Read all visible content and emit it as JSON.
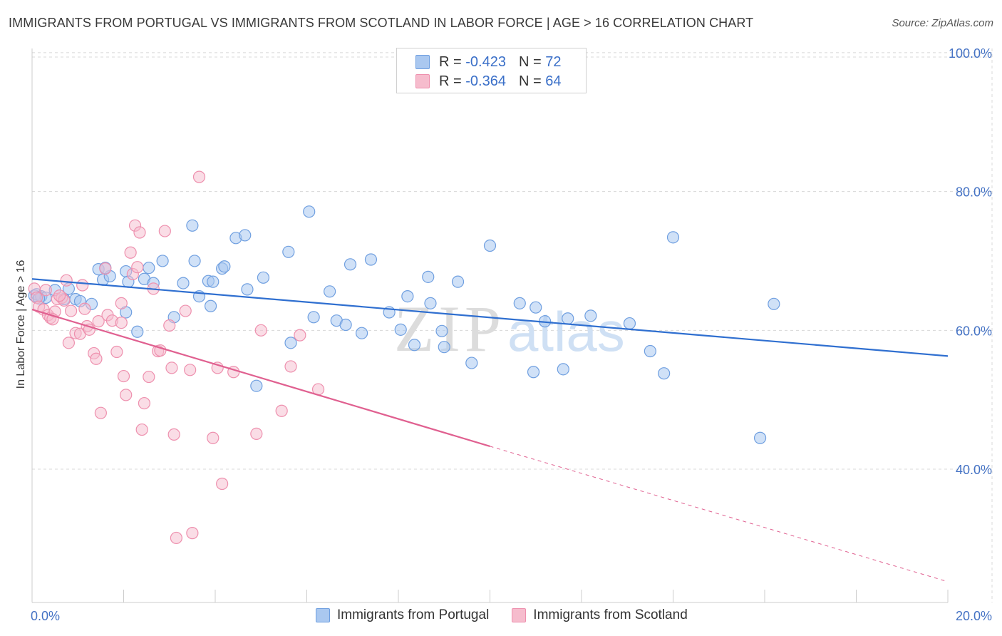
{
  "header": {
    "title": "IMMIGRANTS FROM PORTUGAL VS IMMIGRANTS FROM SCOTLAND IN LABOR FORCE | AGE > 16 CORRELATION CHART",
    "source": "Source: ZipAtlas.com"
  },
  "legend": {
    "rows": [
      {
        "r_label": "R = ",
        "r_value": "-0.423",
        "n_label": "N = ",
        "n_value": "72"
      },
      {
        "r_label": "R = ",
        "r_value": "-0.364",
        "n_label": "N = ",
        "n_value": "64"
      }
    ]
  },
  "watermark": {
    "zip": "ZIP",
    "atlas": "atlas"
  },
  "colors": {
    "portugal_fill": "#aac8f0",
    "portugal_stroke": "#6f9fe0",
    "portugal_line": "#2f6fd0",
    "scotland_fill": "#f6bccd",
    "scotland_stroke": "#ee90ae",
    "scotland_line": "#e06090",
    "tick_text": "#4472c4",
    "grid": "#d8d8d8"
  },
  "chart_data": {
    "type": "scatter",
    "title": "IMMIGRANTS FROM PORTUGAL VS IMMIGRANTS FROM SCOTLAND IN LABOR FORCE | AGE > 16 CORRELATION CHART",
    "xlabel": "",
    "ylabel": "In Labor Force | Age > 16",
    "xlim": [
      0,
      20
    ],
    "ylim": [
      20.8,
      100.6
    ],
    "x_tick_labels": [
      {
        "value": 0,
        "label": "0.0%"
      },
      {
        "value": 20,
        "label": "20.0%"
      }
    ],
    "y_tick_labels": [
      {
        "value": 100,
        "label": "100.0%"
      },
      {
        "value": 80,
        "label": "80.0%"
      },
      {
        "value": 60,
        "label": "60.0%"
      },
      {
        "value": 40,
        "label": "40.0%"
      }
    ],
    "grid": true,
    "legend_position": "top-center",
    "series": [
      {
        "name": "Immigrants from Portugal",
        "points": [
          [
            0.05,
            65.0
          ],
          [
            0.1,
            65.2
          ],
          [
            0.2,
            64.9
          ],
          [
            0.3,
            64.7
          ],
          [
            0.5,
            65.8
          ],
          [
            0.8,
            66.0
          ],
          [
            0.7,
            64.5
          ],
          [
            0.95,
            64.5
          ],
          [
            1.3,
            63.8
          ],
          [
            1.45,
            68.8
          ],
          [
            1.55,
            67.3
          ],
          [
            1.7,
            67.8
          ],
          [
            1.6,
            69.0
          ],
          [
            2.05,
            62.6
          ],
          [
            2.05,
            68.5
          ],
          [
            2.3,
            59.8
          ],
          [
            2.45,
            67.4
          ],
          [
            2.55,
            69.0
          ],
          [
            2.65,
            66.8
          ],
          [
            2.85,
            70.0
          ],
          [
            3.1,
            61.9
          ],
          [
            3.3,
            66.8
          ],
          [
            3.5,
            75.1
          ],
          [
            3.55,
            70.0
          ],
          [
            3.65,
            64.9
          ],
          [
            3.85,
            67.1
          ],
          [
            3.95,
            67.0
          ],
          [
            4.15,
            68.9
          ],
          [
            4.2,
            69.2
          ],
          [
            4.45,
            73.3
          ],
          [
            4.65,
            73.7
          ],
          [
            4.7,
            65.9
          ],
          [
            4.9,
            52.0
          ],
          [
            5.05,
            67.6
          ],
          [
            5.6,
            71.3
          ],
          [
            5.65,
            58.2
          ],
          [
            6.05,
            77.1
          ],
          [
            6.15,
            61.9
          ],
          [
            6.5,
            65.6
          ],
          [
            6.65,
            61.4
          ],
          [
            6.85,
            60.8
          ],
          [
            6.95,
            69.5
          ],
          [
            7.2,
            59.6
          ],
          [
            7.4,
            70.2
          ],
          [
            7.8,
            62.6
          ],
          [
            8.05,
            60.1
          ],
          [
            8.2,
            64.9
          ],
          [
            8.35,
            57.9
          ],
          [
            8.65,
            67.7
          ],
          [
            8.7,
            63.9
          ],
          [
            8.95,
            59.9
          ],
          [
            9.0,
            57.6
          ],
          [
            9.3,
            67.0
          ],
          [
            9.6,
            55.3
          ],
          [
            10.0,
            72.2
          ],
          [
            10.65,
            63.9
          ],
          [
            10.95,
            54.0
          ],
          [
            11.0,
            63.3
          ],
          [
            11.2,
            61.3
          ],
          [
            11.6,
            54.4
          ],
          [
            11.7,
            61.7
          ],
          [
            12.2,
            62.1
          ],
          [
            13.05,
            61.0
          ],
          [
            13.5,
            57.0
          ],
          [
            13.8,
            53.8
          ],
          [
            14.0,
            73.4
          ],
          [
            15.9,
            44.5
          ],
          [
            16.2,
            63.8
          ],
          [
            0.15,
            64.6
          ],
          [
            1.05,
            64.2
          ],
          [
            2.1,
            67.0
          ],
          [
            3.9,
            63.5
          ]
        ],
        "trend": {
          "x0": 0,
          "y0": 67.4,
          "x1": 20,
          "y1": 56.3
        }
      },
      {
        "name": "Immigrants from Scotland",
        "points": [
          [
            0.05,
            66.0
          ],
          [
            0.1,
            64.7
          ],
          [
            0.15,
            63.4
          ],
          [
            0.25,
            63.0
          ],
          [
            0.35,
            62.2
          ],
          [
            0.4,
            61.8
          ],
          [
            0.5,
            62.7
          ],
          [
            0.55,
            64.5
          ],
          [
            0.65,
            64.7
          ],
          [
            0.7,
            64.3
          ],
          [
            0.75,
            67.2
          ],
          [
            0.8,
            58.2
          ],
          [
            0.85,
            62.8
          ],
          [
            0.95,
            59.6
          ],
          [
            1.05,
            59.5
          ],
          [
            1.1,
            66.5
          ],
          [
            1.2,
            60.6
          ],
          [
            1.25,
            60.1
          ],
          [
            1.35,
            56.7
          ],
          [
            1.4,
            55.9
          ],
          [
            1.45,
            61.3
          ],
          [
            1.5,
            48.1
          ],
          [
            1.6,
            68.9
          ],
          [
            1.65,
            62.2
          ],
          [
            1.75,
            61.4
          ],
          [
            1.85,
            56.9
          ],
          [
            1.95,
            63.9
          ],
          [
            1.95,
            61.1
          ],
          [
            2.0,
            53.4
          ],
          [
            2.05,
            50.7
          ],
          [
            2.15,
            71.2
          ],
          [
            2.2,
            68.1
          ],
          [
            2.25,
            75.1
          ],
          [
            2.3,
            69.1
          ],
          [
            2.35,
            74.1
          ],
          [
            2.4,
            45.7
          ],
          [
            2.45,
            49.5
          ],
          [
            2.55,
            53.3
          ],
          [
            2.65,
            66.0
          ],
          [
            2.75,
            57.0
          ],
          [
            2.8,
            57.1
          ],
          [
            2.9,
            74.3
          ],
          [
            3.0,
            60.7
          ],
          [
            3.05,
            54.6
          ],
          [
            3.1,
            45.0
          ],
          [
            3.15,
            30.1
          ],
          [
            3.35,
            62.8
          ],
          [
            3.45,
            54.3
          ],
          [
            3.5,
            30.8
          ],
          [
            3.65,
            82.1
          ],
          [
            3.95,
            44.5
          ],
          [
            4.05,
            54.6
          ],
          [
            4.15,
            37.9
          ],
          [
            4.4,
            54.0
          ],
          [
            4.9,
            45.1
          ],
          [
            5.0,
            60.0
          ],
          [
            5.45,
            48.4
          ],
          [
            5.65,
            54.8
          ],
          [
            5.85,
            59.3
          ],
          [
            6.25,
            51.5
          ],
          [
            0.3,
            65.8
          ],
          [
            0.45,
            61.6
          ],
          [
            0.6,
            65.0
          ],
          [
            1.15,
            63.1
          ]
        ],
        "trend": {
          "x0": 0,
          "y0": 63.0,
          "x1": 10,
          "y1": 43.3
        },
        "trend_dashed": {
          "x0": 10,
          "y0": 43.3,
          "x1": 20,
          "y1": 23.8
        }
      }
    ]
  },
  "bottom_legend": {
    "items": [
      {
        "label": "Immigrants from Portugal"
      },
      {
        "label": "Immigrants from Scotland"
      }
    ]
  }
}
